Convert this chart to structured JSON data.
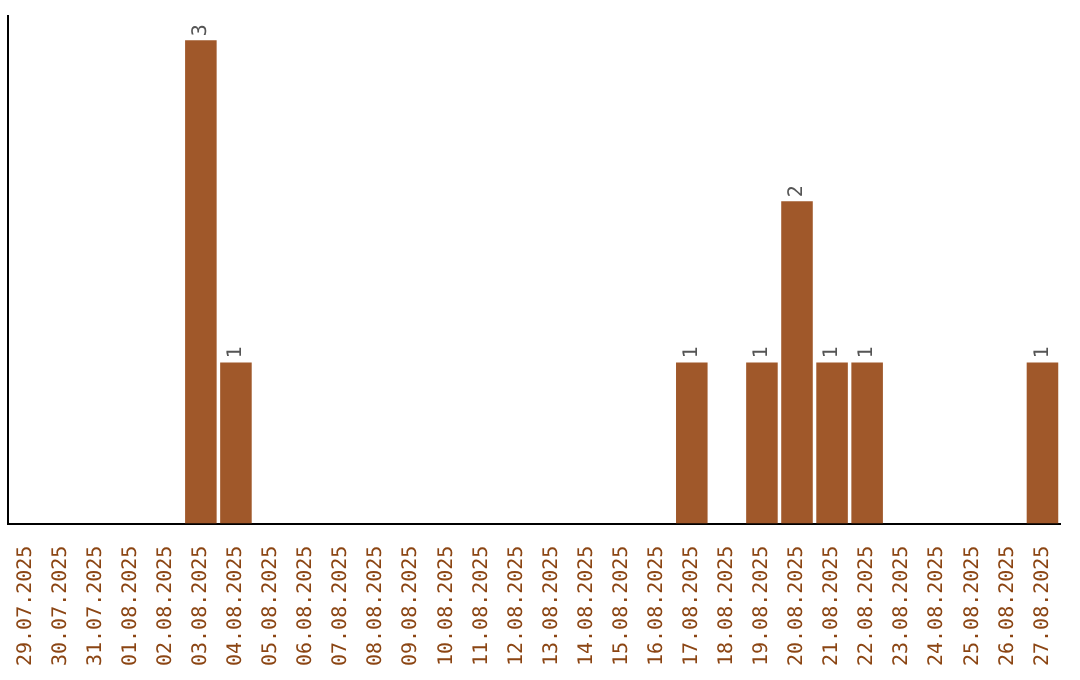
{
  "chart_data": {
    "type": "bar",
    "categories": [
      "29.07.2025",
      "30.07.2025",
      "31.07.2025",
      "01.08.2025",
      "02.08.2025",
      "03.08.2025",
      "04.08.2025",
      "05.08.2025",
      "06.08.2025",
      "07.08.2025",
      "08.08.2025",
      "09.08.2025",
      "10.08.2025",
      "11.08.2025",
      "12.08.2025",
      "13.08.2025",
      "14.08.2025",
      "15.08.2025",
      "16.08.2025",
      "17.08.2025",
      "18.08.2025",
      "19.08.2025",
      "20.08.2025",
      "21.08.2025",
      "22.08.2025",
      "23.08.2025",
      "24.08.2025",
      "25.08.2025",
      "26.08.2025",
      "27.08.2025"
    ],
    "values": [
      0,
      0,
      0,
      0,
      0,
      3,
      1,
      0,
      0,
      0,
      0,
      0,
      0,
      0,
      0,
      0,
      0,
      0,
      0,
      1,
      0,
      1,
      2,
      1,
      1,
      0,
      0,
      0,
      0,
      1
    ],
    "value_labels": [
      null,
      null,
      null,
      null,
      null,
      "3",
      "1",
      null,
      null,
      null,
      null,
      null,
      null,
      null,
      null,
      null,
      null,
      null,
      null,
      "1",
      null,
      "1",
      "2",
      "1",
      "1",
      null,
      null,
      null,
      null,
      "1"
    ],
    "color": "#a0582a",
    "grid": false,
    "legend": false,
    "tick_labels": "x"
  }
}
